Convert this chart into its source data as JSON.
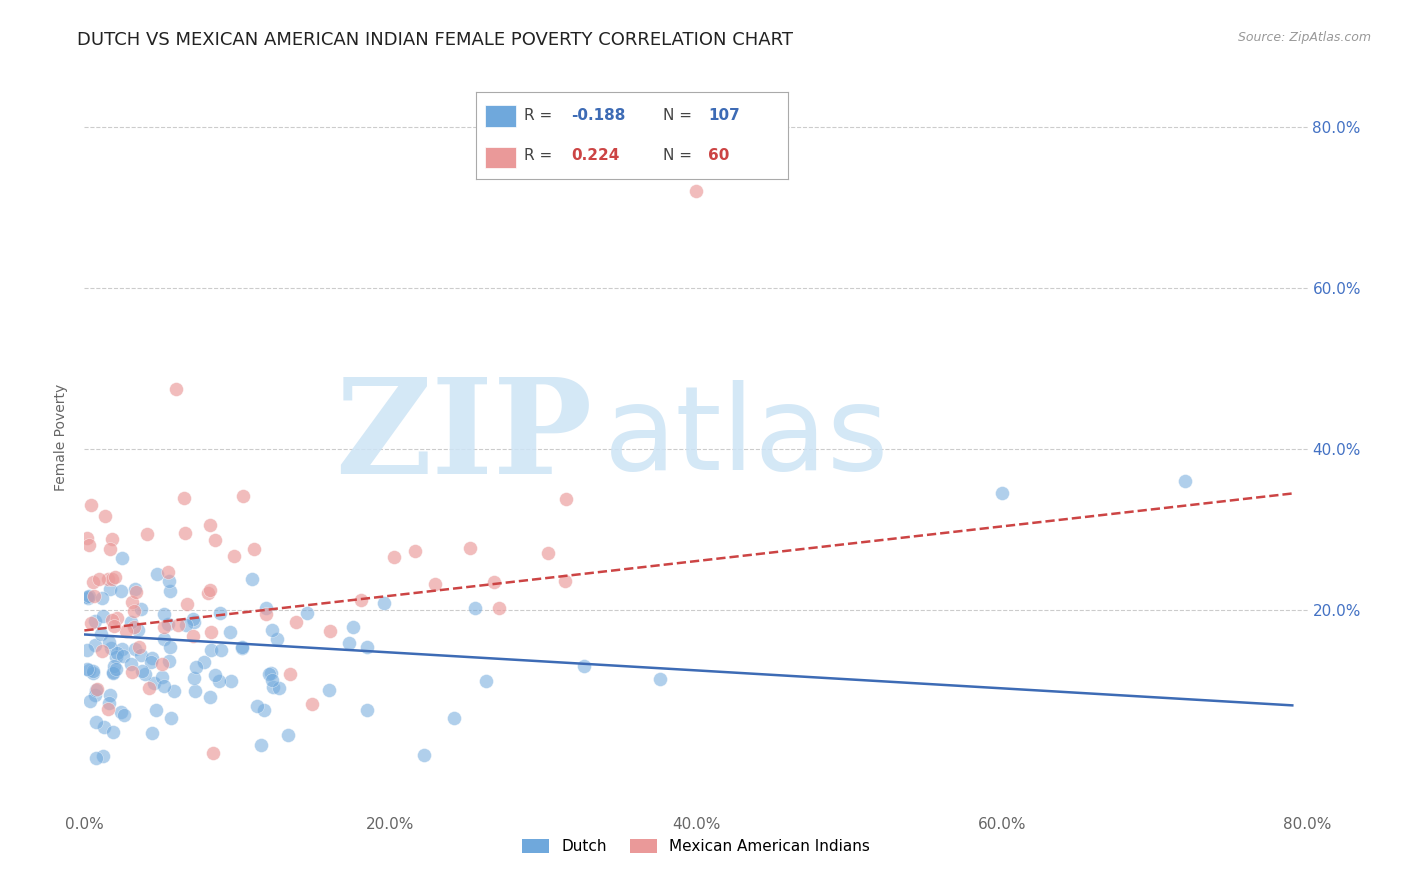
{
  "title": "DUTCH VS MEXICAN AMERICAN INDIAN FEMALE POVERTY CORRELATION CHART",
  "source": "Source: ZipAtlas.com",
  "ylabel": "Female Poverty",
  "xlim": [
    0.0,
    0.8
  ],
  "ylim": [
    -0.05,
    0.88
  ],
  "ytick_labels": [
    "20.0%",
    "40.0%",
    "60.0%",
    "80.0%"
  ],
  "ytick_values": [
    0.2,
    0.4,
    0.6,
    0.8
  ],
  "xtick_labels": [
    "0.0%",
    "20.0%",
    "40.0%",
    "60.0%",
    "80.0%"
  ],
  "xtick_values": [
    0.0,
    0.2,
    0.4,
    0.6,
    0.8
  ],
  "dutch_color": "#6fa8dc",
  "mexican_color": "#ea9999",
  "dutch_line_color": "#3d6bb5",
  "mexican_line_color": "#cc4444",
  "dutch_R": -0.188,
  "dutch_N": 107,
  "mexican_R": 0.224,
  "mexican_N": 60,
  "background_color": "#ffffff",
  "grid_color": "#cccccc",
  "title_fontsize": 13,
  "axis_label_fontsize": 10,
  "tick_fontsize": 11,
  "right_tick_color": "#4472c4",
  "legend_R1": "R = -0.188",
  "legend_N1": "N = 107",
  "legend_R2": "R =  0.224",
  "legend_N2": "N =  60",
  "dutch_label": "Dutch",
  "mexican_label": "Mexican American Indians",
  "dutch_trend_start": 0.17,
  "dutch_trend_end": 0.082,
  "mexican_trend_start": 0.175,
  "mexican_trend_end": 0.345
}
